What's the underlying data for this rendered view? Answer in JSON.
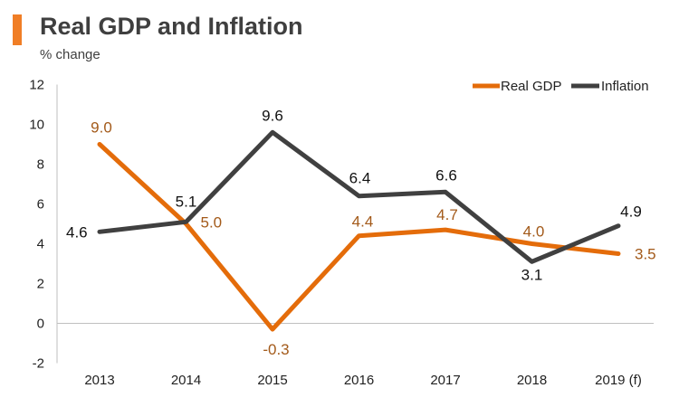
{
  "colors": {
    "accent": "#f07e26",
    "gdp": "#e46c0a",
    "gdp_label": "#a35a1a",
    "inflation": "#404040",
    "inflation_label": "#111111",
    "axis": "#bfbfbf"
  },
  "chart_data": {
    "type": "line",
    "title": "Real GDP and Inflation",
    "subtitle": "% change",
    "xlabel": "",
    "ylabel": "",
    "categories": [
      "2013",
      "2014",
      "2015",
      "2016",
      "2017",
      "2018",
      "2019 (f)"
    ],
    "ylim": [
      -2,
      12
    ],
    "yticks": [
      "12",
      "10",
      "8",
      "6",
      "4",
      "2",
      "0",
      "-2"
    ],
    "legend_position": "top-right",
    "series": [
      {
        "name": "Real GDP",
        "values": [
          9.0,
          5.0,
          -0.3,
          4.4,
          4.7,
          4.0,
          3.5
        ],
        "labels": [
          "9.0",
          "5.0",
          "-0.3",
          "4.4",
          "4.7",
          "4.0",
          "3.5"
        ]
      },
      {
        "name": "Inflation",
        "values": [
          4.6,
          5.1,
          9.6,
          6.4,
          6.6,
          3.1,
          4.9
        ],
        "labels": [
          "4.6",
          "5.1",
          "9.6",
          "6.4",
          "6.6",
          "3.1",
          "4.9"
        ]
      }
    ]
  }
}
